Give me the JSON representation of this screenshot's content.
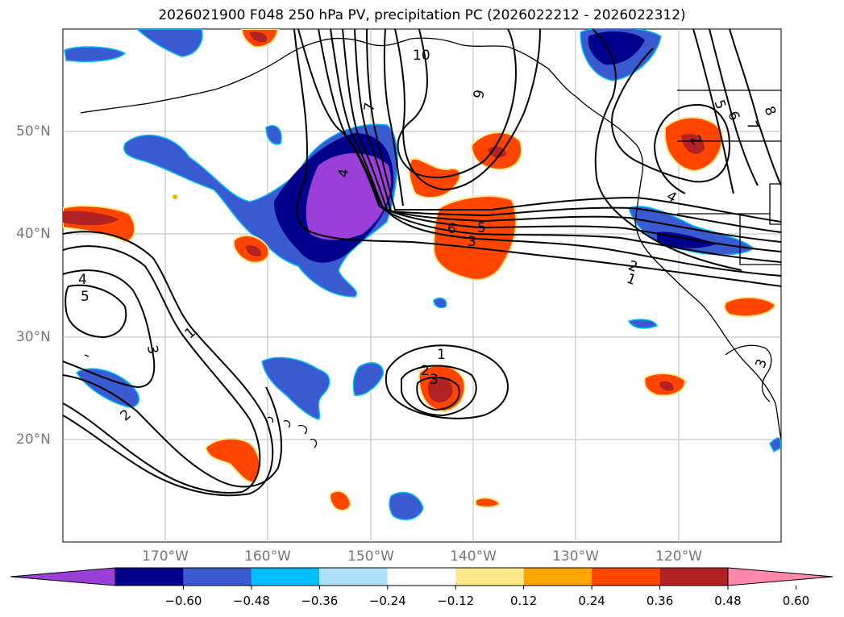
{
  "title": "2026021900 F048 250 hPa PV, precipitation PC (2026022212 - 2026022312)",
  "lat_labels": [
    "50°N",
    "40°N",
    "30°N",
    "20°N"
  ],
  "lon_labels": [
    "170°W",
    "160°W",
    "150°W",
    "140°W",
    "130°W",
    "120°W"
  ],
  "colorbar": {
    "tick_labels": [
      "−0.60",
      "−0.48",
      "−0.36",
      "−0.24",
      "−0.12",
      "0.12",
      "0.24",
      "0.36",
      "0.48",
      "0.60"
    ],
    "colors": [
      "#9a3fd8",
      "#00008b",
      "#3a5bd0",
      "#00bfff",
      "#aee0fa",
      "#ffffff",
      "#ffe98a",
      "#ffa500",
      "#ff4500",
      "#b22222",
      "#ff87aa"
    ]
  },
  "contour_labels": [
    "10",
    "9",
    "7",
    "4",
    "6",
    "5",
    "3",
    "2",
    "1",
    "5",
    "6",
    "7",
    "8",
    "4",
    "2",
    "1",
    "4",
    "5",
    "1",
    "3",
    "2",
    "1",
    "2",
    "3",
    "3"
  ],
  "colors": {
    "purple": "#9a3fd8",
    "navy": "#00008b",
    "blue": "#3a5bd0",
    "cyan": "#00bfff",
    "orange": "#ff4500",
    "darkred": "#b22222",
    "yellow": "#ffe98a"
  }
}
